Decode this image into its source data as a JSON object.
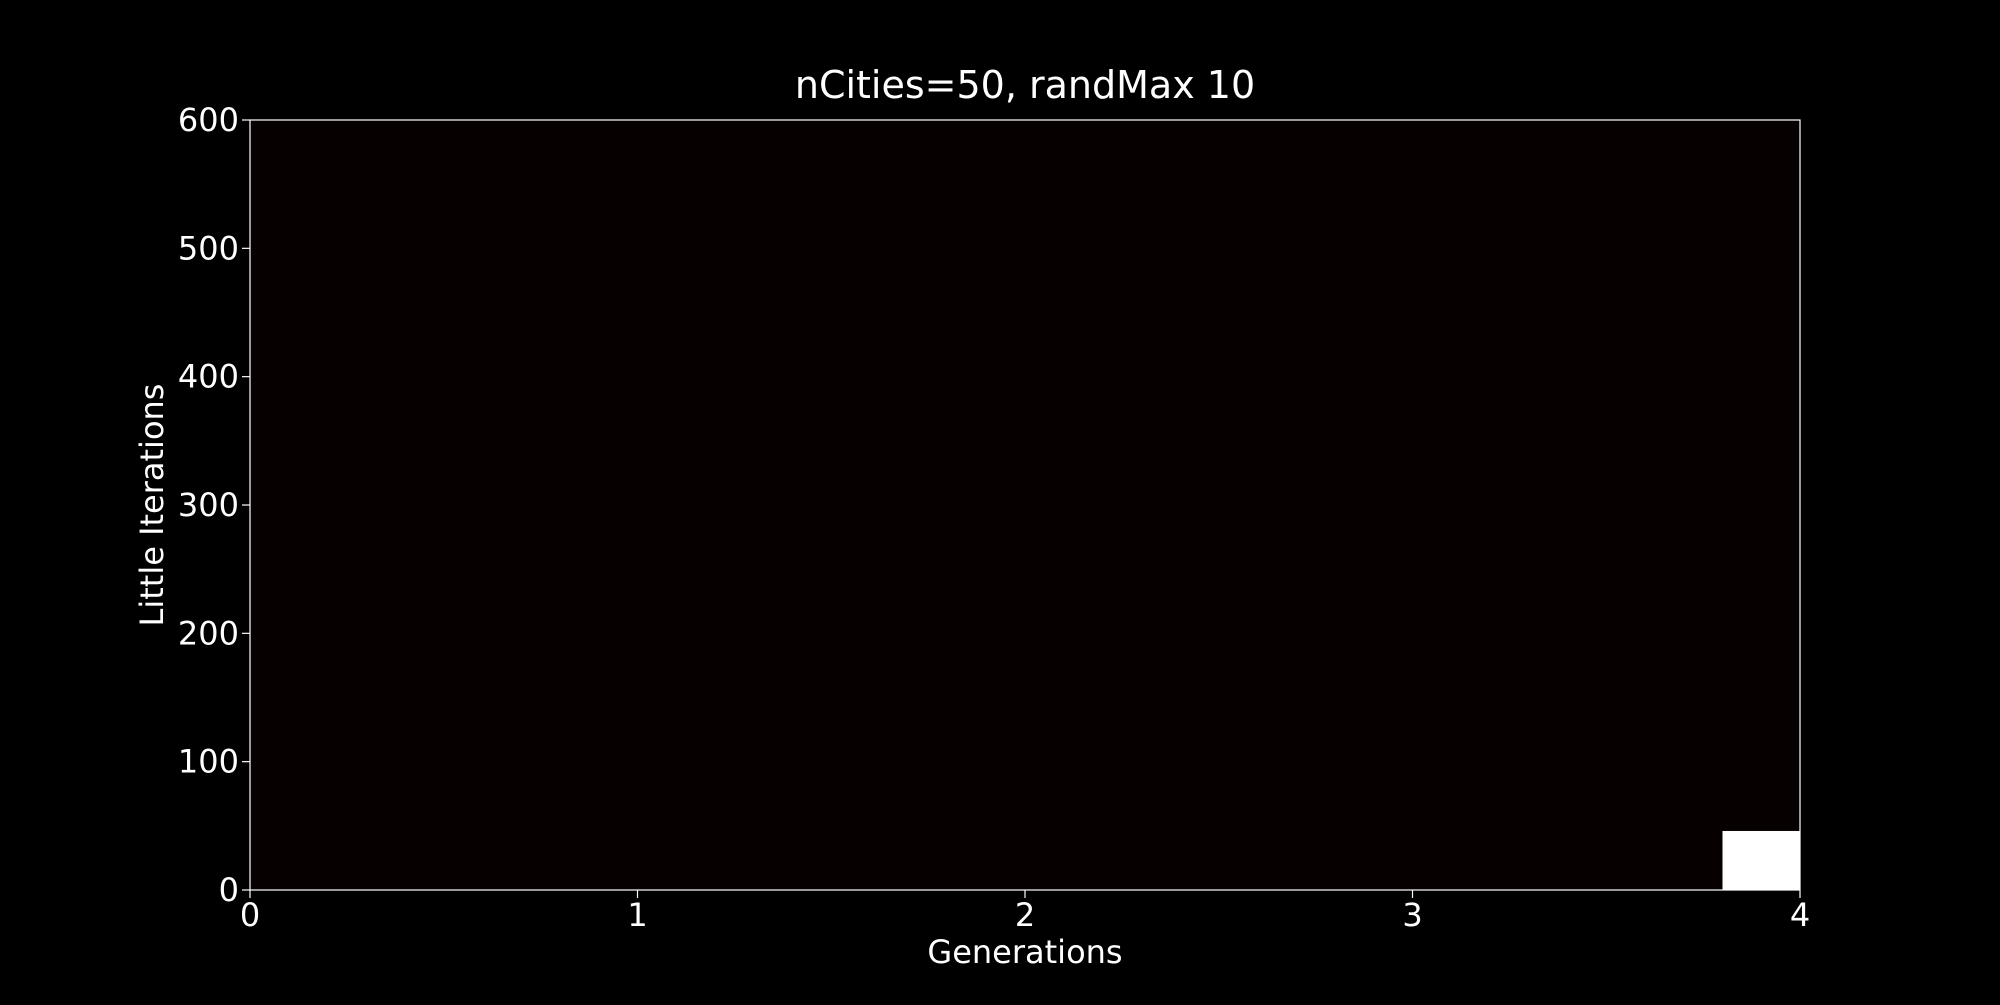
{
  "chart_data": {
    "type": "bar",
    "title": "nCities=50, randMax 10",
    "xlabel": "Generations",
    "ylabel": "Little Iterations",
    "xlim": [
      0,
      4
    ],
    "ylim": [
      0,
      600
    ],
    "xticks": [
      "0",
      "1",
      "2",
      "3",
      "4"
    ],
    "yticks": [
      "0",
      "100",
      "200",
      "300",
      "400",
      "500",
      "600"
    ],
    "grid": false,
    "bars": [
      {
        "x_start": 3.8,
        "x_end": 4.0,
        "value": 46
      }
    ],
    "colors": {
      "background": "#000000",
      "plot_area": "#060000",
      "axes": "#ffffff",
      "bar": "#ffffff"
    }
  }
}
